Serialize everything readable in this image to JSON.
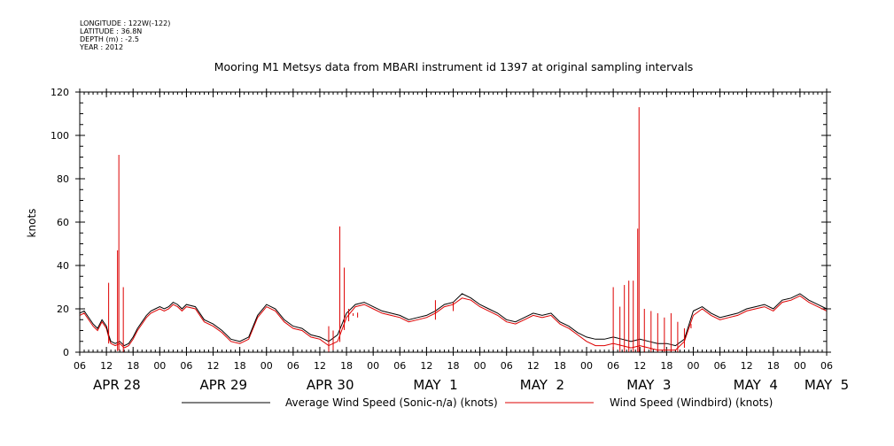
{
  "meta": {
    "longitude": "LONGITUDE : 122W(-122)",
    "latitude": "LATITUDE : 36.8N",
    "depth": "DEPTH (m) : -2.5",
    "year": "YEAR : 2012"
  },
  "chart_data": {
    "type": "line",
    "title": "Mooring M1 Metsys data from MBARI instrument id 1397 at original sampling intervals",
    "xlabel": "",
    "ylabel": "knots",
    "ylim": [
      0,
      120
    ],
    "yticks": [
      0,
      20,
      40,
      60,
      80,
      100,
      120
    ],
    "xlim_hours": [
      0,
      168
    ],
    "x_start": "2012-04-28 06:00",
    "hour_tick_labels": [
      "06",
      "12",
      "18",
      "00",
      "06",
      "12",
      "18",
      "00",
      "06",
      "12",
      "18",
      "00",
      "06",
      "12",
      "18",
      "00",
      "06",
      "12",
      "18",
      "00",
      "06",
      "12",
      "18",
      "00",
      "06",
      "12",
      "18",
      "00",
      "06"
    ],
    "day_labels": [
      {
        "text": "APR 28",
        "hour": 3
      },
      {
        "text": "APR 29",
        "hour": 27
      },
      {
        "text": "APR 30",
        "hour": 51
      },
      {
        "text": "MAY  1",
        "hour": 75
      },
      {
        "text": "MAY  2",
        "hour": 99
      },
      {
        "text": "MAY  3",
        "hour": 123
      },
      {
        "text": "MAY  4",
        "hour": 147
      },
      {
        "text": "MAY  5",
        "hour": 163
      }
    ],
    "legend_position": "bottom",
    "series": [
      {
        "name": "Average Wind Speed (Sonic-n/a) (knots)",
        "color": "#000000",
        "x_hours": [
          0,
          1,
          3,
          4,
          5,
          6,
          6.5,
          7,
          8,
          9,
          10,
          11,
          12,
          13,
          14,
          15,
          16,
          17,
          18,
          19,
          20,
          21,
          22,
          23,
          24,
          26,
          28,
          30,
          32,
          34,
          36,
          38,
          40,
          42,
          44,
          46,
          48,
          50,
          52,
          54,
          56,
          58,
          60,
          62,
          64,
          66,
          68,
          70,
          72,
          74,
          76,
          78,
          80,
          82,
          84,
          86,
          88,
          90,
          92,
          94,
          96,
          98,
          100,
          102,
          104,
          106,
          108,
          110,
          112,
          114,
          116,
          118,
          120,
          122,
          124,
          126,
          128,
          130,
          132,
          134,
          136,
          138,
          140,
          142,
          144,
          146,
          148,
          150,
          152,
          154,
          156,
          158,
          160,
          162,
          164,
          166,
          168
        ],
        "values": [
          18,
          19,
          13,
          11,
          15,
          12,
          8,
          5,
          4,
          5,
          3,
          4,
          7,
          11,
          14,
          17,
          19,
          20,
          21,
          20,
          21,
          23,
          22,
          20,
          22,
          21,
          15,
          13,
          10,
          6,
          5,
          7,
          17,
          22,
          20,
          15,
          12,
          11,
          8,
          7,
          5,
          8,
          18,
          22,
          23,
          21,
          19,
          18,
          17,
          15,
          16,
          17,
          19,
          22,
          23,
          27,
          25,
          22,
          20,
          18,
          15,
          14,
          16,
          18,
          17,
          18,
          14,
          12,
          9,
          7,
          6,
          6,
          7,
          6,
          5,
          6,
          5,
          4,
          4,
          3,
          6,
          19,
          21,
          18,
          16,
          17,
          18,
          20,
          21,
          22,
          20,
          24,
          25,
          27,
          24,
          22,
          20
        ]
      },
      {
        "name": "Wind Speed (Windbird) (knots)",
        "color": "#dd0000",
        "x_hours": [
          0,
          1,
          3,
          4,
          5,
          6,
          6.5,
          7,
          8,
          9,
          10,
          11,
          12,
          13,
          14,
          15,
          16,
          17,
          18,
          19,
          20,
          21,
          22,
          23,
          24,
          26,
          28,
          30,
          32,
          34,
          36,
          38,
          40,
          42,
          44,
          46,
          48,
          50,
          52,
          54,
          56,
          58,
          60,
          62,
          64,
          66,
          68,
          70,
          72,
          74,
          76,
          78,
          80,
          82,
          84,
          86,
          88,
          90,
          92,
          94,
          96,
          98,
          100,
          102,
          104,
          106,
          108,
          110,
          112,
          114,
          116,
          118,
          120,
          122,
          124,
          126,
          128,
          130,
          132,
          134,
          136,
          138,
          140,
          142,
          144,
          146,
          148,
          150,
          152,
          154,
          156,
          158,
          160,
          162,
          164,
          166,
          168
        ],
        "values": [
          17,
          18,
          12,
          10,
          14,
          11,
          7,
          4,
          3,
          4,
          2,
          3,
          6,
          10,
          13,
          16,
          18,
          19,
          20,
          19,
          20,
          22,
          21,
          19,
          21,
          20,
          14,
          12,
          9,
          5,
          4,
          6,
          16,
          21,
          19,
          14,
          11,
          10,
          7,
          6,
          3,
          5,
          16,
          21,
          22,
          20,
          18,
          17,
          16,
          14,
          15,
          16,
          18,
          21,
          22,
          25,
          24,
          21,
          19,
          17,
          14,
          13,
          15,
          17,
          16,
          17,
          13,
          11,
          8,
          5,
          3,
          3,
          4,
          3,
          2,
          3,
          2,
          1,
          1,
          1,
          5,
          17,
          20,
          17,
          15,
          16,
          17,
          19,
          20,
          21,
          19,
          23,
          24,
          26,
          23,
          21,
          19
        ],
        "spikes": [
          {
            "hour": 6.5,
            "value": 32
          },
          {
            "hour": 8.5,
            "value": 47
          },
          {
            "hour": 8.8,
            "value": 91
          },
          {
            "hour": 9.8,
            "value": 30
          },
          {
            "hour": 56,
            "value": 12
          },
          {
            "hour": 57,
            "value": 10
          },
          {
            "hour": 58.5,
            "value": 58
          },
          {
            "hour": 59.5,
            "value": 39
          },
          {
            "hour": 60.5,
            "value": 20
          },
          {
            "hour": 61.5,
            "value": 18
          },
          {
            "hour": 62.5,
            "value": 16
          },
          {
            "hour": 80,
            "value": 24
          },
          {
            "hour": 84,
            "value": 23
          },
          {
            "hour": 120,
            "value": 30
          },
          {
            "hour": 121.5,
            "value": 21
          },
          {
            "hour": 122.5,
            "value": 31
          },
          {
            "hour": 123.5,
            "value": 33
          },
          {
            "hour": 124.5,
            "value": 33
          },
          {
            "hour": 125.5,
            "value": 57
          },
          {
            "hour": 125.8,
            "value": 113
          },
          {
            "hour": 127,
            "value": 20
          },
          {
            "hour": 128.5,
            "value": 19
          },
          {
            "hour": 130,
            "value": 18
          },
          {
            "hour": 131.5,
            "value": 16
          },
          {
            "hour": 133,
            "value": 18
          },
          {
            "hour": 134.5,
            "value": 14
          },
          {
            "hour": 136,
            "value": 11
          },
          {
            "hour": 137.5,
            "value": 13
          }
        ]
      }
    ]
  }
}
